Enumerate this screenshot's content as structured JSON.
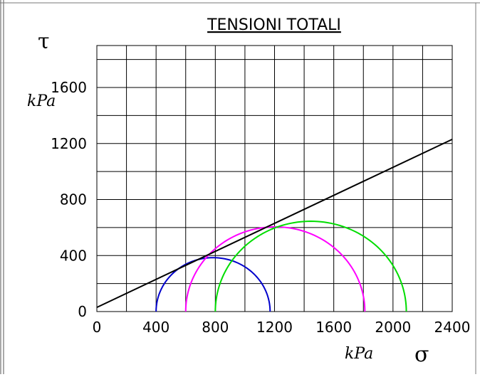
{
  "chart_data": {
    "type": "line",
    "title": "TENSIONI TOTALI",
    "xlabel_symbol": "σ",
    "xlabel_unit": "kPa",
    "ylabel_symbol": "τ",
    "ylabel_unit": "kPa",
    "xlim": [
      0,
      2400
    ],
    "ylim": [
      0,
      1900
    ],
    "x_ticks": [
      0,
      400,
      800,
      1200,
      1600,
      2000,
      2400
    ],
    "y_ticks": [
      0,
      400,
      800,
      1200,
      1600
    ],
    "grid": true,
    "envelope": {
      "intercept": 30,
      "slope": 0.5
    },
    "circles": [
      {
        "sigma3": 400,
        "sigma1": 1170,
        "color": "#0000cc"
      },
      {
        "sigma3": 600,
        "sigma1": 1810,
        "color": "#ff00ff"
      },
      {
        "sigma3": 800,
        "sigma1": 2090,
        "color": "#00dd00"
      }
    ]
  }
}
